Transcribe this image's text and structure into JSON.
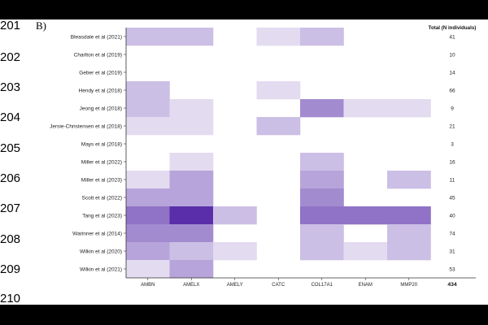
{
  "line_numbers": [
    "201",
    "202",
    "203",
    "204",
    "205",
    "206",
    "207",
    "208",
    "209",
    "210"
  ],
  "panel_label": "B)",
  "chart_data": {
    "type": "heatmap",
    "title": "",
    "xlabel": "",
    "ylabel": "",
    "x_categories": [
      "AMBN",
      "AMELX",
      "AMELY",
      "CATC",
      "COL17A1",
      "ENAM",
      "MMP20"
    ],
    "y_categories": [
      "Bleasdale et al (2021)",
      "Charlton et al (2019)",
      "Geber et al (2019)",
      "Hendy et al (2018)",
      "Jeong et al (2018)",
      "Jersie-Christensen et al (2018)",
      "Mays et al (2018)",
      "Miller et al (2022)",
      "Miller et al (2023)",
      "Scott et al (2022)",
      "Tang et al (2023)",
      "Warinner et al (2014)",
      "Wilkin et al (2020)",
      "Wilkin et al (2021)"
    ],
    "values": [
      [
        2,
        2,
        0,
        1,
        2,
        0,
        0
      ],
      [
        0,
        0,
        0,
        0,
        0,
        0,
        0
      ],
      [
        0,
        0,
        0,
        0,
        0,
        0,
        0
      ],
      [
        2,
        0,
        0,
        1,
        0,
        0,
        0
      ],
      [
        2,
        1,
        0,
        0,
        4,
        1,
        1
      ],
      [
        1,
        1,
        0,
        2,
        0,
        0,
        0
      ],
      [
        0,
        0,
        0,
        0,
        0,
        0,
        0
      ],
      [
        0,
        1,
        0,
        0,
        2,
        0,
        0
      ],
      [
        1,
        3,
        0,
        0,
        3,
        0,
        2
      ],
      [
        3,
        3,
        0,
        0,
        4,
        0,
        0
      ],
      [
        5,
        8,
        2,
        0,
        5,
        5,
        5
      ],
      [
        4,
        4,
        0,
        0,
        2,
        0,
        2
      ],
      [
        3,
        2,
        1,
        0,
        2,
        1,
        2
      ],
      [
        1,
        3,
        0,
        0,
        0,
        0,
        0
      ]
    ],
    "value_range": [
      0,
      8
    ],
    "color_low": "#ffffff",
    "color_high": "#5a2eaa",
    "totals_header": "Total (N individuals)",
    "totals": [
      "41",
      "10",
      "14",
      "66",
      "9",
      "21",
      "3",
      "16",
      "11",
      "45",
      "40",
      "74",
      "31",
      "53"
    ],
    "grand_total": "434"
  }
}
